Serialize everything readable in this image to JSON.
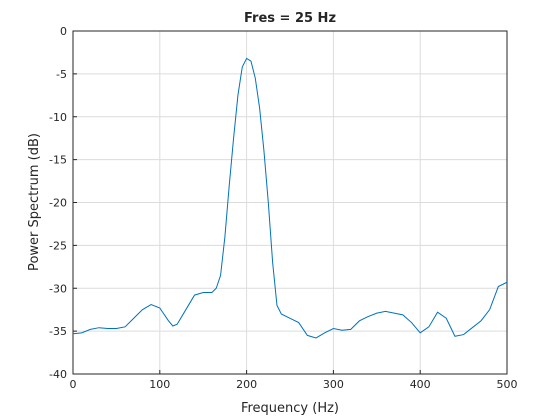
{
  "chart_data": {
    "type": "line",
    "title": "Fres = 25 Hz",
    "x_label": "Frequency (Hz)",
    "y_label": "Power Spectrum (dB)",
    "x": [
      0,
      10,
      20,
      30,
      40,
      50,
      60,
      70,
      80,
      90,
      100,
      110,
      115,
      120,
      130,
      140,
      150,
      160,
      165,
      170,
      175,
      180,
      185,
      190,
      195,
      200,
      205,
      210,
      215,
      220,
      225,
      230,
      235,
      240,
      250,
      260,
      270,
      280,
      290,
      300,
      310,
      320,
      330,
      340,
      350,
      360,
      370,
      380,
      390,
      400,
      410,
      420,
      430,
      440,
      450,
      460,
      470,
      480,
      490,
      500
    ],
    "series": [
      {
        "name": "Power Spectrum",
        "color": "#0072bd",
        "values": [
          -35.3,
          -35.2,
          -34.8,
          -34.6,
          -34.7,
          -34.7,
          -34.5,
          -33.5,
          -32.5,
          -31.9,
          -32.3,
          -33.8,
          -34.4,
          -34.2,
          -32.5,
          -30.8,
          -30.5,
          -30.5,
          -30.0,
          -28.5,
          -24,
          -18,
          -12.5,
          -7.5,
          -4.2,
          -3.2,
          -3.5,
          -5.5,
          -9,
          -14,
          -20,
          -27,
          -32,
          -33,
          -33.5,
          -34,
          -35.5,
          -35.8,
          -35.2,
          -34.7,
          -34.9,
          -34.8,
          -33.8,
          -33.3,
          -32.9,
          -32.7,
          -32.9,
          -33.1,
          -34,
          -35.2,
          -34.5,
          -32.8,
          -33.5,
          -35.6,
          -35.4,
          -34.6,
          -33.8,
          -32.5,
          -29.8,
          -29.3
        ]
      }
    ],
    "xlim": [
      0,
      500
    ],
    "xticks": [
      0,
      100,
      200,
      300,
      400,
      500
    ],
    "ylim": [
      -40,
      0
    ],
    "yticks": [
      -40,
      -35,
      -30,
      -25,
      -20,
      -15,
      -10,
      -5,
      0
    ],
    "grid": true
  }
}
